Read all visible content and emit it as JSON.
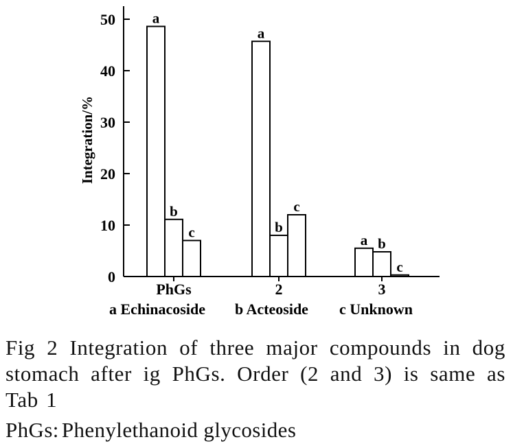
{
  "chart_data": {
    "type": "bar",
    "ylabel": "Integration/%",
    "ylim": [
      0,
      52
    ],
    "yticks": [
      0,
      10,
      20,
      30,
      40,
      50
    ],
    "categories": [
      "PhGs",
      "2",
      "3"
    ],
    "series": [
      {
        "name": "a",
        "values": [
          48.6,
          45.7,
          5.5
        ]
      },
      {
        "name": "b",
        "values": [
          11.1,
          8.0,
          4.8
        ]
      },
      {
        "name": "c",
        "values": [
          7.0,
          12.0,
          0.3
        ]
      }
    ],
    "legend": [
      {
        "key": "a",
        "label": "Echinacoside"
      },
      {
        "key": "b",
        "label": "Acteoside"
      },
      {
        "key": "c",
        "label": "Unknown"
      }
    ],
    "legend_position": "bottom",
    "grid": false,
    "bar_fill": "#ffffff",
    "bar_stroke": "#000000"
  },
  "caption": {
    "text": "Fig 2   Integration of three major compounds in dog stomach after ig PhGs. Order (2 and 3) is same as Tab 1"
  },
  "footnote": {
    "label": "PhGs:",
    "text": "Phenylethanoid glycosides"
  }
}
